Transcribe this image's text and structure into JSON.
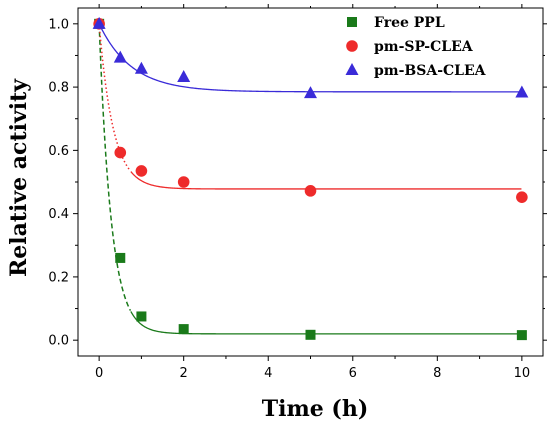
{
  "chart_data": {
    "type": "scatter",
    "xlabel": "Time (h)",
    "ylabel": "Relative activity",
    "xlim": [
      -0.5,
      10.5
    ],
    "ylim": [
      -0.05,
      1.05
    ],
    "xticks": [
      "0",
      "2",
      "4",
      "6",
      "8",
      "10"
    ],
    "yticks": [
      "0.0",
      "0.2",
      "0.4",
      "0.6",
      "0.8",
      "1.0"
    ],
    "grid": false,
    "legend_position": "top-right",
    "series": [
      {
        "name": "Free PPL",
        "marker": "square",
        "color": "#1a7a1a",
        "x": [
          0,
          0.5,
          1,
          2,
          5,
          10
        ],
        "y": [
          1.0,
          0.26,
          0.075,
          0.035,
          0.017,
          0.016
        ],
        "fit": {
          "plateau": 0.02,
          "rate": 3.5,
          "style": "dashed-then-solid"
        }
      },
      {
        "name": "pm-SP-CLEA",
        "marker": "circle",
        "color": "#ee2b2b",
        "x": [
          0,
          0.5,
          1,
          2,
          5,
          10
        ],
        "y": [
          1.0,
          0.593,
          0.535,
          0.5,
          0.472,
          0.452
        ],
        "fit": {
          "plateau": 0.478,
          "rate": 3.0,
          "style": "dotted-then-solid"
        }
      },
      {
        "name": "pm-BSA-CLEA",
        "marker": "triangle",
        "color": "#3a2bd8",
        "x": [
          0,
          0.5,
          1,
          2,
          5,
          10
        ],
        "y": [
          1.0,
          0.893,
          0.858,
          0.832,
          0.781,
          0.783
        ],
        "fit": {
          "plateau": 0.785,
          "rate": 1.3,
          "style": "solid"
        }
      }
    ]
  }
}
